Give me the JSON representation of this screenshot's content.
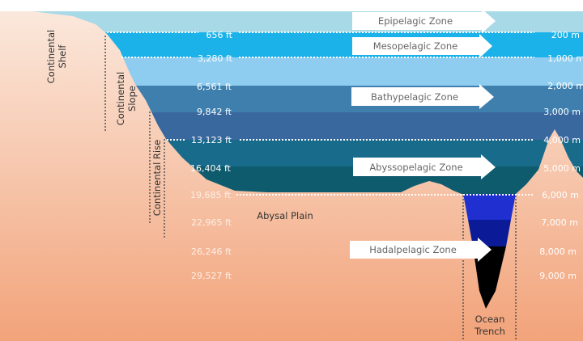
{
  "zones": [
    "Epipelagic Zone",
    "Mesopelagic Zone",
    "Bathypelagic Zone",
    "Abyssopelagic Zone",
    "Hadalpelagic Zone"
  ],
  "depths_ft": [
    "656 ft",
    "3,280 ft",
    "6,561 ft",
    "9,842 ft",
    "13,123 ft",
    "16,404 ft",
    "19,685 ft",
    "22,965 ft",
    "26,246 ft",
    "29,527 ft"
  ],
  "depths_m": [
    "200 m",
    "1,000 m",
    "2,000 m",
    "3,000 m",
    "4,000 m",
    "5,000 m",
    "6,000 m",
    "7,000 m",
    "8,000 m",
    "9,000 m"
  ],
  "features": {
    "shelf": [
      "Continental",
      "Shelf"
    ],
    "slope": [
      "Continental",
      "Slope"
    ],
    "rise": "Continental Rise",
    "plain": "Abysal Plain",
    "trench": [
      "Ocean",
      "Trench"
    ]
  },
  "colors": {
    "epipelagic": "#a8d9e6",
    "mesopelagic": "#1bb2ea",
    "bathy_upper": "#8fcdf0",
    "bathy_mid": "#3f7fae",
    "bathy_lower": "#39689f",
    "abysso_upper": "#186b8b",
    "abysso_lower": "#0f5b6e",
    "hadal_1": "#1f2fd0",
    "hadal_2": "#0b1a96",
    "hadal_3": "#000000",
    "seafloor_top": "#fbe6d8",
    "seafloor_bottom": "#f2a57c"
  }
}
